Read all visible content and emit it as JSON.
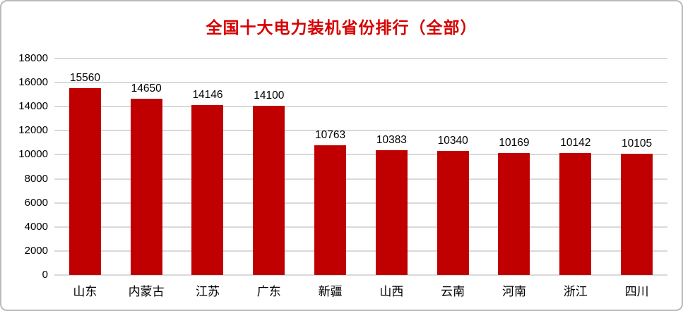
{
  "frame": {
    "background_color": "#ffffff",
    "border_color": "#b9b9b9"
  },
  "chart_data": {
    "type": "bar",
    "title": "全国十大电力装机省份排行（全部）",
    "title_color": "#d60000",
    "bar_color": "#c00000",
    "gridline_color": "#d9d9d9",
    "text_color": "#000000",
    "categories": [
      "山东",
      "内蒙古",
      "江苏",
      "广东",
      "新疆",
      "山西",
      "云南",
      "河南",
      "浙江",
      "四川"
    ],
    "values": [
      15560,
      14650,
      14146,
      14100,
      10763,
      10383,
      10340,
      10169,
      10142,
      10105
    ],
    "value_labels": [
      "15560",
      "14650",
      "14146",
      "14100",
      "10763",
      "10383",
      "10340",
      "10169",
      "10142",
      "10105"
    ],
    "xlabel": "",
    "ylabel": "",
    "ylim": [
      0,
      18000
    ],
    "ytick_step": 2000,
    "yticks": [
      "0",
      "2000",
      "4000",
      "6000",
      "8000",
      "10000",
      "12000",
      "14000",
      "16000",
      "18000"
    ],
    "grid": "horizontal",
    "legend": "none",
    "value_labels_shown": true
  }
}
